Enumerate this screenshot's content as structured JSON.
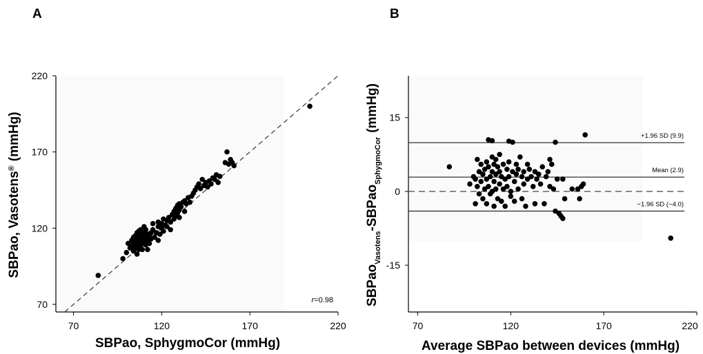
{
  "chart_data": [
    {
      "panel": "A",
      "type": "scatter",
      "xlabel": "SBPao, SphygmoCor (mmHg)",
      "ylabel_main": "SBPao, Vasotens",
      "ylabel_sup": "®",
      "ylabel_unit": "(mmHg)",
      "xlim": [
        60,
        220
      ],
      "ylim": [
        65,
        220
      ],
      "xticks": [
        70,
        120,
        170,
        220
      ],
      "yticks": [
        70,
        120,
        170,
        220
      ],
      "annotation_r": "r",
      "annotation_value": "=0.98",
      "identity_line": true,
      "points": [
        [
          84,
          89
        ],
        [
          98,
          100
        ],
        [
          100,
          104
        ],
        [
          101,
          110
        ],
        [
          102,
          107
        ],
        [
          103,
          108
        ],
        [
          103,
          112
        ],
        [
          104,
          105
        ],
        [
          104,
          110
        ],
        [
          104,
          114
        ],
        [
          105,
          107
        ],
        [
          105,
          111
        ],
        [
          105,
          115
        ],
        [
          106,
          103
        ],
        [
          106,
          109
        ],
        [
          106,
          112
        ],
        [
          106,
          117
        ],
        [
          107,
          106
        ],
        [
          107,
          110
        ],
        [
          107,
          114
        ],
        [
          107,
          118
        ],
        [
          108,
          108
        ],
        [
          108,
          111
        ],
        [
          108,
          115
        ],
        [
          108,
          119
        ],
        [
          109,
          106
        ],
        [
          109,
          112
        ],
        [
          109,
          116
        ],
        [
          110,
          110
        ],
        [
          110,
          113
        ],
        [
          110,
          117
        ],
        [
          111,
          109
        ],
        [
          111,
          114
        ],
        [
          111,
          119
        ],
        [
          112,
          112
        ],
        [
          112,
          116
        ],
        [
          113,
          110
        ],
        [
          113,
          115
        ],
        [
          114,
          113
        ],
        [
          114,
          117
        ],
        [
          115,
          119
        ],
        [
          116,
          114
        ],
        [
          117,
          117
        ],
        [
          118,
          121
        ],
        [
          118,
          124
        ],
        [
          119,
          116
        ],
        [
          120,
          120
        ],
        [
          120,
          123
        ],
        [
          121,
          118
        ],
        [
          121,
          126
        ],
        [
          122,
          122
        ],
        [
          123,
          121
        ],
        [
          123,
          125
        ],
        [
          124,
          127
        ],
        [
          125,
          124
        ],
        [
          126,
          129
        ],
        [
          127,
          126
        ],
        [
          127,
          131
        ],
        [
          128,
          128
        ],
        [
          128,
          133
        ],
        [
          129,
          130
        ],
        [
          129,
          135
        ],
        [
          130,
          132
        ],
        [
          130,
          136
        ],
        [
          131,
          134
        ],
        [
          132,
          137
        ],
        [
          133,
          131
        ],
        [
          133,
          138
        ],
        [
          134,
          136
        ],
        [
          135,
          140
        ],
        [
          136,
          137
        ],
        [
          137,
          141
        ],
        [
          138,
          143
        ],
        [
          139,
          145
        ],
        [
          140,
          147
        ],
        [
          141,
          149
        ],
        [
          142,
          146
        ],
        [
          143,
          152
        ],
        [
          144,
          148
        ],
        [
          145,
          150
        ],
        [
          146,
          147
        ],
        [
          147,
          151
        ],
        [
          148,
          149
        ],
        [
          149,
          153
        ],
        [
          150,
          152
        ],
        [
          151,
          155
        ],
        [
          152,
          150
        ],
        [
          153,
          154
        ],
        [
          156,
          163
        ],
        [
          157,
          170
        ],
        [
          158,
          162
        ],
        [
          159,
          165
        ],
        [
          160,
          163
        ],
        [
          161,
          161
        ],
        [
          110,
          121
        ],
        [
          115,
          123
        ],
        [
          125,
          119
        ],
        [
          118,
          112
        ],
        [
          112,
          106
        ],
        [
          130,
          127
        ],
        [
          204,
          200
        ]
      ]
    },
    {
      "panel": "B",
      "type": "scatter",
      "xlabel": "Average SBPao between devices (mmHg)",
      "ylabel_main": "SBPao",
      "ylabel_sub1": "Vasotens",
      "ylabel_mid": "-SBPao",
      "ylabel_sub2": "SphygmoCor",
      "ylabel_unit": "(mmHg)",
      "xlim": [
        65,
        220
      ],
      "ylim": [
        -24.5,
        23.5
      ],
      "xticks": [
        70,
        120,
        170,
        220
      ],
      "yticks": [
        -15,
        0,
        15
      ],
      "zero_line_dashed": true,
      "reference_lines": [
        {
          "label": "+1.96 SD (9.9)",
          "value": 9.9
        },
        {
          "label": "Mean (2.9)",
          "value": 2.9
        },
        {
          "label": "−1.96 SD (−4.0)",
          "value": -4.0
        }
      ],
      "points": [
        [
          87,
          5
        ],
        [
          98,
          1.5
        ],
        [
          100,
          3
        ],
        [
          101,
          2.5
        ],
        [
          101,
          -2.5
        ],
        [
          102,
          6.5
        ],
        [
          102,
          1
        ],
        [
          103,
          4
        ],
        [
          103,
          -0.5
        ],
        [
          104,
          5.5
        ],
        [
          104,
          2
        ],
        [
          105,
          3.5
        ],
        [
          105,
          -1.5
        ],
        [
          106,
          4.5
        ],
        [
          106,
          0.5
        ],
        [
          107,
          6
        ],
        [
          107,
          2.5
        ],
        [
          107,
          -2.5
        ],
        [
          108,
          10.5
        ],
        [
          108,
          5
        ],
        [
          108,
          1
        ],
        [
          109,
          3
        ],
        [
          109,
          -0.5
        ],
        [
          110,
          10.3
        ],
        [
          110,
          7
        ],
        [
          110,
          4
        ],
        [
          110,
          0
        ],
        [
          111,
          5.5
        ],
        [
          111,
          2
        ],
        [
          111,
          -3
        ],
        [
          112,
          6.5
        ],
        [
          112,
          3.5
        ],
        [
          112,
          0.5
        ],
        [
          113,
          5
        ],
        [
          113,
          -1.5
        ],
        [
          114,
          7.5
        ],
        [
          114,
          4
        ],
        [
          114,
          1.5
        ],
        [
          115,
          3
        ],
        [
          115,
          -2
        ],
        [
          116,
          5.5
        ],
        [
          116,
          0.5
        ],
        [
          117,
          2.5
        ],
        [
          117,
          -3
        ],
        [
          118,
          4.5
        ],
        [
          118,
          1
        ],
        [
          119,
          10.2
        ],
        [
          119,
          6
        ],
        [
          119,
          3
        ],
        [
          120,
          0
        ],
        [
          120,
          -1
        ],
        [
          121,
          4
        ],
        [
          121,
          10
        ],
        [
          122,
          2
        ],
        [
          122,
          -2
        ],
        [
          123,
          5.5
        ],
        [
          123,
          3.5
        ],
        [
          124,
          4.5
        ],
        [
          124,
          0.5
        ],
        [
          125,
          7
        ],
        [
          126,
          3
        ],
        [
          126,
          -1.5
        ],
        [
          127,
          4
        ],
        [
          127,
          1.5
        ],
        [
          128,
          -3
        ],
        [
          129,
          5.5
        ],
        [
          129,
          2.5
        ],
        [
          130,
          4.5
        ],
        [
          131,
          3
        ],
        [
          132,
          1
        ],
        [
          133,
          4
        ],
        [
          133,
          -2.5
        ],
        [
          134,
          2.5
        ],
        [
          135,
          3.5
        ],
        [
          136,
          1.5
        ],
        [
          137,
          5
        ],
        [
          138,
          -2.5
        ],
        [
          139,
          3
        ],
        [
          140,
          4
        ],
        [
          141,
          6.5
        ],
        [
          141,
          1
        ],
        [
          142,
          5.5
        ],
        [
          143,
          0.5
        ],
        [
          144,
          10
        ],
        [
          144,
          -4
        ],
        [
          145,
          2.5
        ],
        [
          146,
          -4.5
        ],
        [
          147,
          -5
        ],
        [
          148,
          2.5
        ],
        [
          149,
          -1.5
        ],
        [
          148,
          -5.5
        ],
        [
          153,
          0.5
        ],
        [
          156,
          0.5
        ],
        [
          157,
          -1.5
        ],
        [
          158,
          1
        ],
        [
          159,
          1.5
        ],
        [
          160,
          11.5
        ],
        [
          206,
          -9.5
        ]
      ]
    }
  ]
}
